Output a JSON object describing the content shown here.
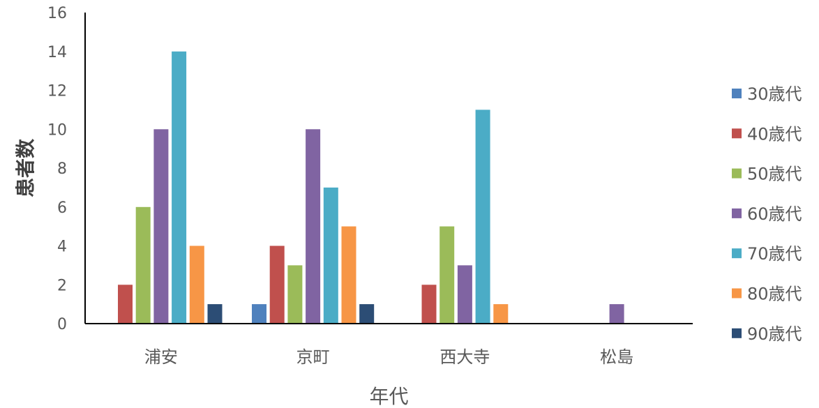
{
  "chart_data": {
    "type": "bar",
    "title": "",
    "xlabel": "年代",
    "ylabel": "患者数",
    "categories": [
      "浦安",
      "京町",
      "西大寺",
      "松島"
    ],
    "ylim": [
      0,
      16
    ],
    "yticks": [
      "0",
      "2",
      "4",
      "6",
      "8",
      "10",
      "12",
      "14",
      "16"
    ],
    "grid": false,
    "legend_position": "right",
    "series": [
      {
        "name": "30歳代",
        "color": "#4f81bd",
        "values": [
          0,
          1,
          0,
          0
        ]
      },
      {
        "name": "40歳代",
        "color": "#c0504d",
        "values": [
          2,
          4,
          2,
          0
        ]
      },
      {
        "name": "50歳代",
        "color": "#9bbb59",
        "values": [
          6,
          3,
          5,
          0
        ]
      },
      {
        "name": "60歳代",
        "color": "#8064a2",
        "values": [
          10,
          10,
          3,
          1
        ]
      },
      {
        "name": "70歳代",
        "color": "#4bacc6",
        "values": [
          14,
          7,
          11,
          0
        ]
      },
      {
        "name": "80歳代",
        "color": "#f79646",
        "values": [
          4,
          5,
          1,
          0
        ]
      },
      {
        "name": "90歳代",
        "color": "#2c4d75",
        "values": [
          1,
          1,
          0,
          0
        ]
      }
    ]
  }
}
